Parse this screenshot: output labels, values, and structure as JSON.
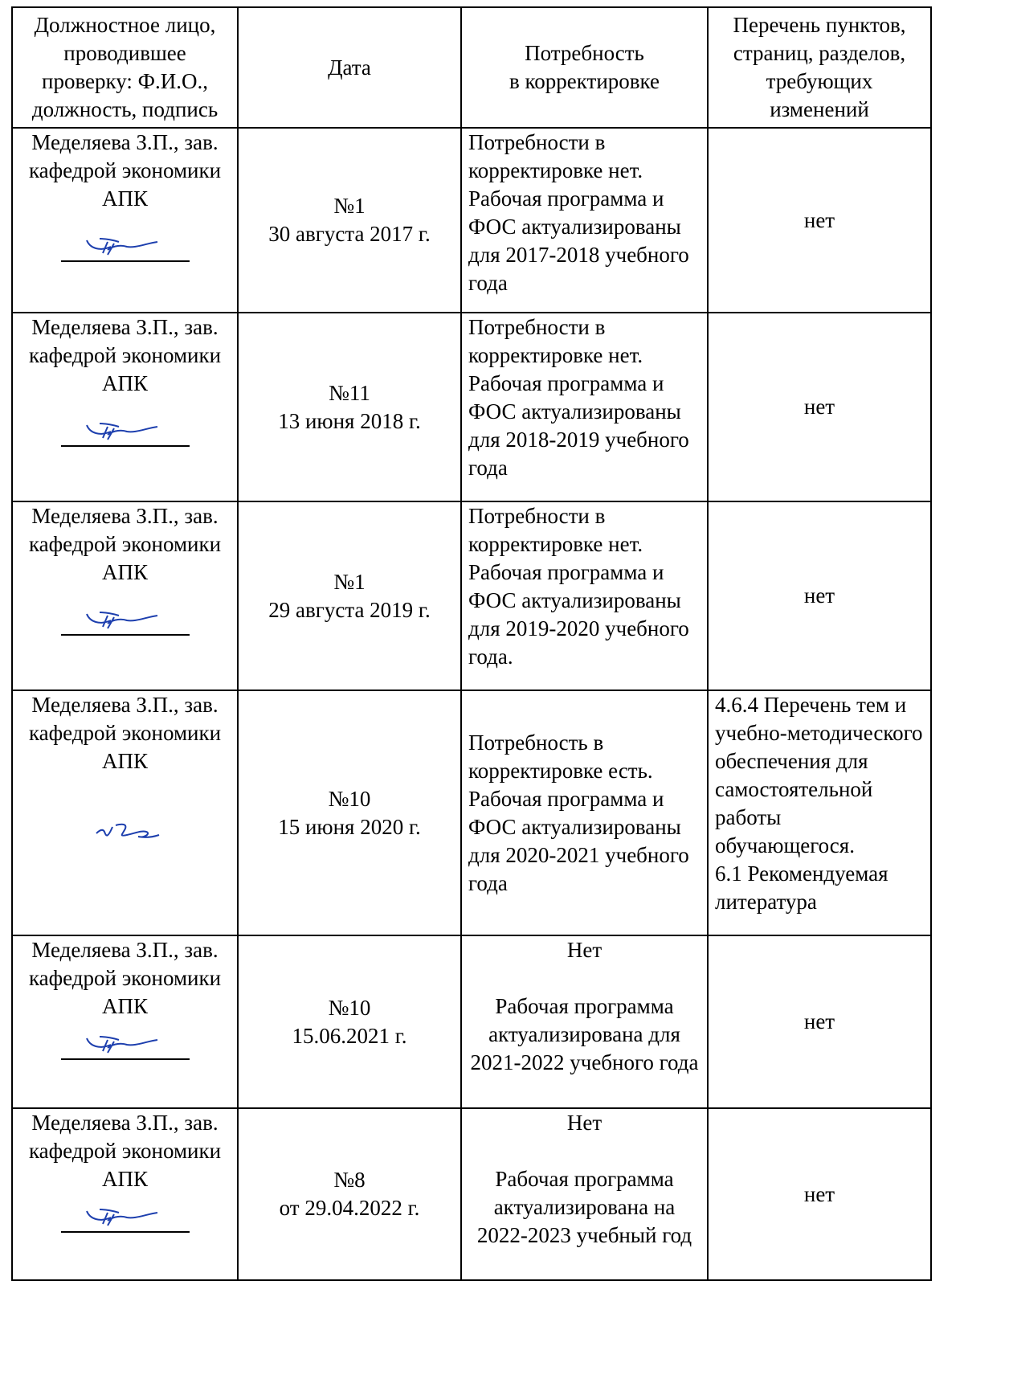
{
  "headers": {
    "official": "Должностное лицо, проводившее проверку: Ф.И.О., должность, подпись",
    "date": "Дата",
    "need": "Потребность\nв корректировке",
    "items": "Перечень пунктов, страниц, разделов, требующих изменений"
  },
  "rows": [
    {
      "official": "Меделяева З.П., зав. кафедрой экономики АПК",
      "protocol": "№1",
      "date": "30 августа 2017 г.",
      "need": "Потребности в корректировке нет. Рабочая программа и ФОС актуализированы для 2017-2018 учебного года",
      "items": "нет",
      "signature_icon": "signature-icon"
    },
    {
      "official": "Меделяева З.П., зав. кафедрой экономики АПК",
      "protocol": "№11",
      "date": "13 июня 2018 г.",
      "need": "Потребности в корректировке нет. Рабочая программа и ФОС актуализированы для 2018-2019 учебного года",
      "items": "нет",
      "signature_icon": "signature-icon"
    },
    {
      "official": "Меделяева З.П., зав. кафедрой экономики АПК",
      "protocol": "№1",
      "date": "29 августа 2019 г.",
      "need": "Потребности в корректировке нет. Рабочая программа и ФОС актуализированы для 2019-2020 учебного года.",
      "items": "нет",
      "signature_icon": "signature-icon"
    },
    {
      "official": "Меделяева З.П., зав. кафедрой экономики АПК",
      "protocol": "№10",
      "date": "15 июня 2020 г.",
      "need": "Потребность в корректировке есть. Рабочая программа и ФОС актуализированы для 2020-2021 учебного года",
      "items": "4.6.4 Перечень тем и учебно-методического обеспечения для самостоятельной работы обучающегося.\n6.1 Рекомендуемая литература",
      "signature_icon": "signature-icon"
    },
    {
      "official": "Меделяева З.П., зав. кафедрой экономики АПК",
      "protocol": "№10",
      "date": "15.06.2021 г.",
      "need_top": "Нет",
      "need": "Рабочая программа актуализирована для 2021-2022 учебного года",
      "items": "нет",
      "signature_icon": "signature-icon"
    },
    {
      "official": "Меделяева З.П., зав. кафедрой экономики АПК",
      "protocol": "№8",
      "date": "от 29.04.2022 г.",
      "need_top": "Нет",
      "need": "Рабочая программа актуализирована на 2022-2023 учебный год",
      "items": "нет",
      "signature_icon": "signature-icon"
    }
  ]
}
